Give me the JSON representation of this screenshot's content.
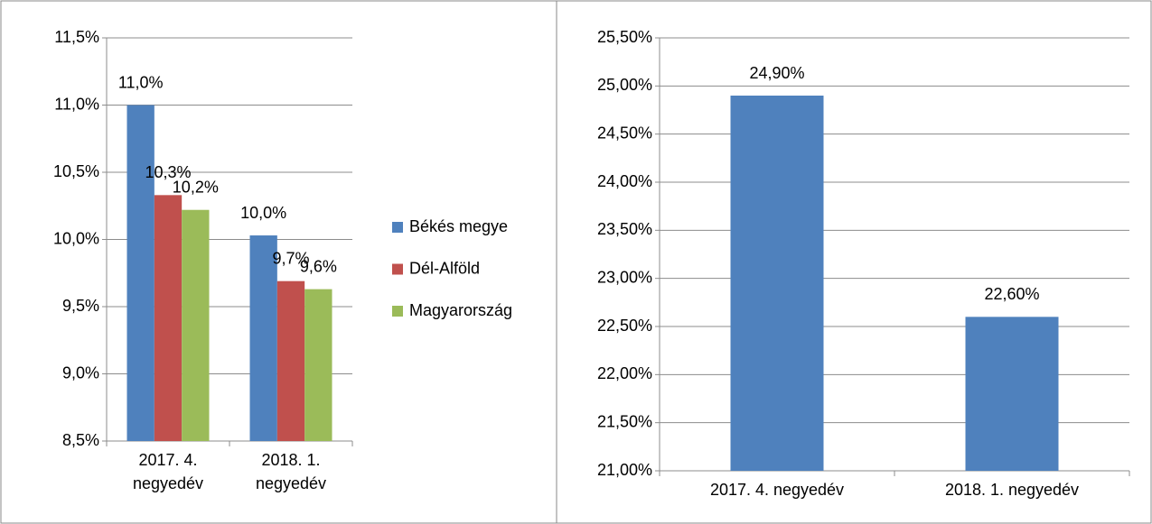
{
  "chart_data": [
    {
      "type": "bar",
      "categories": [
        "2017. 4. negyedév",
        "2018. 1. negyedév"
      ],
      "series": [
        {
          "name": "Békés megye",
          "color": "#4f81bd",
          "values": [
            11.0,
            10.03
          ],
          "value_labels": [
            "11,0%",
            "10,0%"
          ]
        },
        {
          "name": "Dél-Alföld",
          "color": "#c0504d",
          "values": [
            10.33,
            9.69
          ],
          "value_labels": [
            "10,3%",
            "9,7%"
          ]
        },
        {
          "name": "Magyarország",
          "color": "#9bbb59",
          "values": [
            10.22,
            9.63
          ],
          "value_labels": [
            "10,2%",
            "9,6%"
          ]
        }
      ],
      "ylim": [
        8.5,
        11.5
      ],
      "yticks": [
        {
          "value": 8.5,
          "label": "8,5%"
        },
        {
          "value": 9.0,
          "label": "9,0%"
        },
        {
          "value": 9.5,
          "label": "9,5%"
        },
        {
          "value": 10.0,
          "label": "10,0%"
        },
        {
          "value": 10.5,
          "label": "10,5%"
        },
        {
          "value": 11.0,
          "label": "11,0%"
        },
        {
          "value": 11.5,
          "label": "11,5%"
        }
      ],
      "grid": true,
      "legend": "right"
    },
    {
      "type": "bar",
      "categories": [
        "2017. 4. negyedév",
        "2018. 1. negyedév"
      ],
      "values": [
        24.9,
        22.6
      ],
      "value_labels": [
        "24,90%",
        "22,60%"
      ],
      "color": "#4f81bd",
      "ylim": [
        21.0,
        25.5
      ],
      "yticks": [
        {
          "value": 21.0,
          "label": "21,00%"
        },
        {
          "value": 21.5,
          "label": "21,50%"
        },
        {
          "value": 22.0,
          "label": "22,00%"
        },
        {
          "value": 22.5,
          "label": "22,50%"
        },
        {
          "value": 23.0,
          "label": "23,00%"
        },
        {
          "value": 23.5,
          "label": "23,50%"
        },
        {
          "value": 24.0,
          "label": "24,00%"
        },
        {
          "value": 24.5,
          "label": "24,50%"
        },
        {
          "value": 25.0,
          "label": "25,00%"
        },
        {
          "value": 25.5,
          "label": "25,50%"
        }
      ],
      "grid": true
    }
  ]
}
